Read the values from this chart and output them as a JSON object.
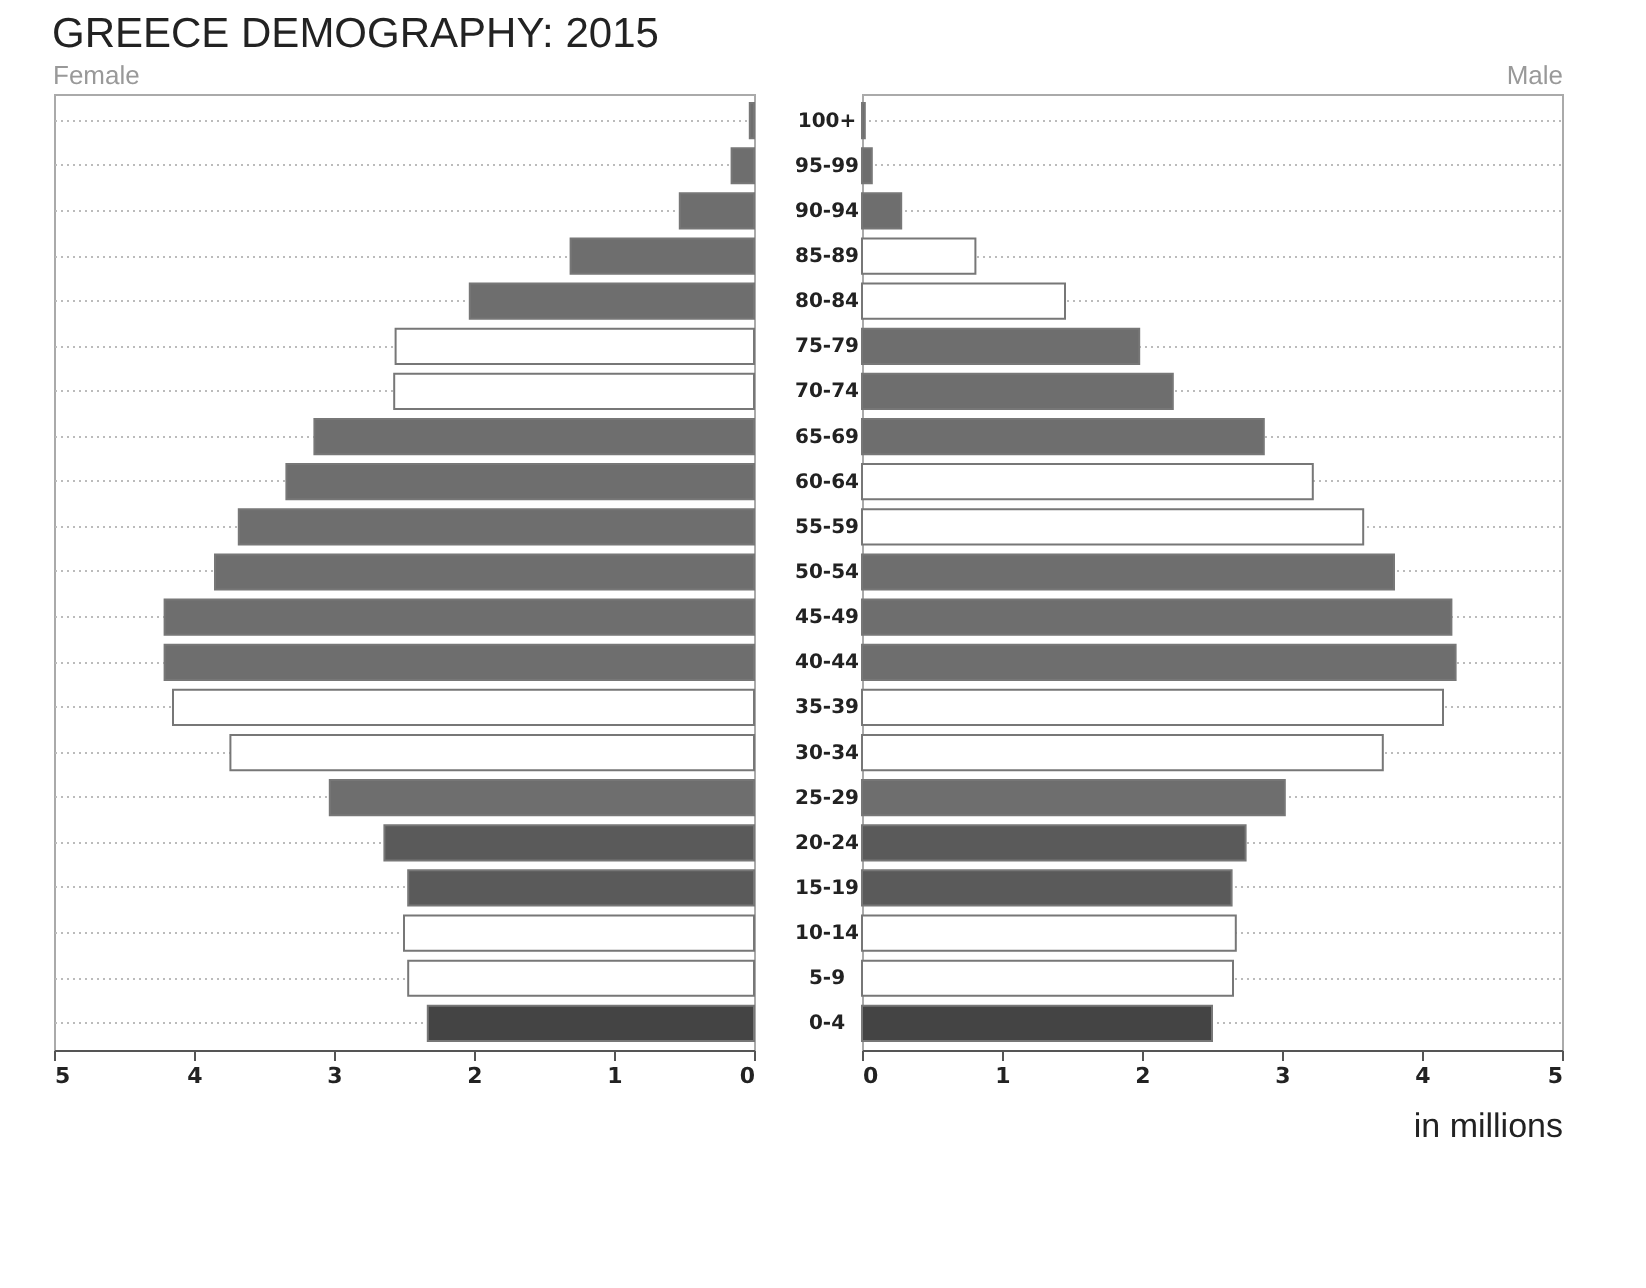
{
  "chart_data": [
    {
      "type": "bar",
      "title": "GREECE DEMOGRAPHY: 2015",
      "orientation": "horizontal",
      "grid": "y",
      "line_style": "dotted",
      "categories": [
        "100+",
        "95-99",
        "90-94",
        "85-89",
        "80-84",
        "75-79",
        "70-74",
        "65-69",
        "60-64",
        "55-59",
        "50-54",
        "45-49",
        "40-44",
        "35-39",
        "30-34",
        "25-29",
        "20-24",
        "15-19",
        "10-14",
        "5-9",
        "0-4"
      ],
      "xlim": [
        5,
        0
      ],
      "xticks": [
        5,
        4,
        3,
        2,
        1,
        0
      ],
      "series": [
        {
          "name": "Female",
          "values": [
            0.03,
            0.16,
            0.53,
            1.31,
            2.03,
            2.56,
            2.57,
            3.14,
            3.34,
            3.68,
            3.85,
            4.21,
            4.21,
            4.15,
            3.74,
            3.03,
            2.64,
            2.47,
            2.5,
            2.47,
            2.33
          ],
          "colors": [
            "#6e6e6e",
            "#6e6e6e",
            "#6e6e6e",
            "#6e6e6e",
            "#6e6e6e",
            "#ffffff",
            "#ffffff",
            "#6e6e6e",
            "#6e6e6e",
            "#6e6e6e",
            "#6e6e6e",
            "#6e6e6e",
            "#6e6e6e",
            "#ffffff",
            "#ffffff",
            "#6e6e6e",
            "#5a5a5a",
            "#5a5a5a",
            "#ffffff",
            "#ffffff",
            "#444444"
          ]
        }
      ]
    },
    {
      "type": "bar",
      "orientation": "horizontal",
      "grid": "y",
      "line_style": "dotted",
      "tick_labels": "x",
      "xlabel": "in millions",
      "xlim": [
        0,
        5
      ],
      "xticks": [
        0,
        1,
        2,
        3,
        4,
        5
      ],
      "series": [
        {
          "name": "Male",
          "values": [
            0.02,
            0.07,
            0.28,
            0.81,
            1.45,
            1.98,
            2.22,
            2.87,
            3.22,
            3.58,
            3.8,
            4.21,
            4.24,
            4.15,
            3.72,
            3.02,
            2.74,
            2.64,
            2.67,
            2.65,
            2.5
          ],
          "colors": [
            "#6e6e6e",
            "#6e6e6e",
            "#6e6e6e",
            "#ffffff",
            "#ffffff",
            "#6e6e6e",
            "#6e6e6e",
            "#6e6e6e",
            "#ffffff",
            "#ffffff",
            "#6e6e6e",
            "#6e6e6e",
            "#6e6e6e",
            "#ffffff",
            "#ffffff",
            "#6e6e6e",
            "#5a5a5a",
            "#5a5a5a",
            "#ffffff",
            "#ffffff",
            "#444444"
          ]
        }
      ]
    }
  ]
}
